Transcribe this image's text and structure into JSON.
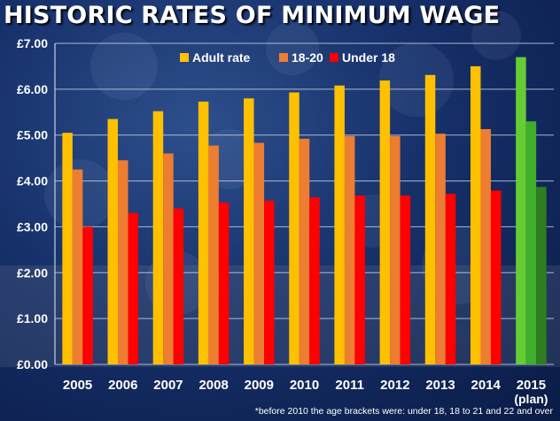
{
  "chart_data": {
    "type": "bar",
    "title": "HISTORIC RATES OF MINIMUM WAGE",
    "categories": [
      "2005",
      "2006",
      "2007",
      "2008",
      "2009",
      "2010",
      "2011",
      "2012",
      "2013",
      "2014",
      "2015"
    ],
    "category_sublabels": [
      "",
      "",
      "",
      "",
      "",
      "",
      "",
      "",
      "",
      "",
      "(plan)"
    ],
    "series": [
      {
        "name": "Adult rate",
        "color": "#ffc000",
        "plan_color": "#66cc33",
        "values": [
          5.05,
          5.35,
          5.52,
          5.73,
          5.8,
          5.93,
          6.08,
          6.19,
          6.31,
          6.5,
          6.7
        ]
      },
      {
        "name": "18-20",
        "color": "#ed7d31",
        "plan_color": "#3fae2a",
        "values": [
          4.25,
          4.45,
          4.6,
          4.77,
          4.83,
          4.92,
          4.98,
          4.98,
          5.03,
          5.13,
          5.3
        ]
      },
      {
        "name": "Under 18",
        "color": "#ff0000",
        "plan_color": "#2e7d1e",
        "values": [
          3.0,
          3.3,
          3.4,
          3.53,
          3.57,
          3.64,
          3.68,
          3.68,
          3.72,
          3.79,
          3.87
        ]
      }
    ],
    "yticks": [
      "£0.00",
      "£1.00",
      "£2.00",
      "£3.00",
      "£4.00",
      "£5.00",
      "£6.00",
      "£7.00"
    ],
    "ylim": [
      0,
      7
    ],
    "grid": true,
    "legend_position": "top",
    "footnote": "*before 2010 the age brackets were: under 18, 18 to 21 and 22 and over"
  }
}
